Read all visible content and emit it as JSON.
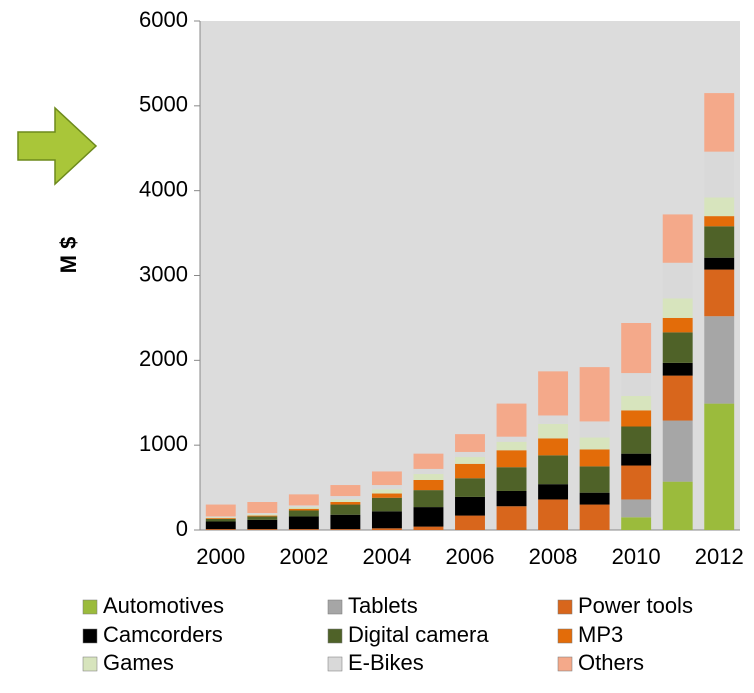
{
  "chart_data": {
    "type": "stacked_bar",
    "y_label": "M $",
    "categories": [
      "2000",
      null,
      "2002",
      null,
      "2004",
      null,
      "2006",
      null,
      "2008",
      null,
      "2010",
      null,
      "2012"
    ],
    "series": [
      {
        "name": "Automotives",
        "color": "#9bbb3c",
        "values": [
          0,
          0,
          0,
          0,
          0,
          0,
          0,
          0,
          0,
          0,
          150,
          570,
          1490
        ]
      },
      {
        "name": "Tablets",
        "color": "#a6a6a6",
        "values": [
          0,
          0,
          0,
          0,
          0,
          0,
          0,
          0,
          0,
          0,
          210,
          720,
          1030
        ]
      },
      {
        "name": "Power tools",
        "color": "#d8661c",
        "values": [
          10,
          10,
          10,
          10,
          20,
          40,
          170,
          280,
          360,
          300,
          400,
          530,
          550
        ]
      },
      {
        "name": "Camcorders",
        "color": "#000000",
        "values": [
          90,
          110,
          150,
          170,
          200,
          230,
          220,
          180,
          180,
          140,
          140,
          150,
          140
        ]
      },
      {
        "name": "Digital camera",
        "color": "#4f6228",
        "values": [
          30,
          40,
          70,
          120,
          160,
          200,
          220,
          280,
          340,
          310,
          320,
          360,
          370
        ]
      },
      {
        "name": "MP3",
        "color": "#e36c09",
        "values": [
          10,
          10,
          20,
          30,
          50,
          120,
          170,
          200,
          200,
          200,
          190,
          170,
          120
        ]
      },
      {
        "name": "Games",
        "color": "#d7e4bd",
        "values": [
          10,
          15,
          20,
          30,
          50,
          70,
          80,
          100,
          170,
          140,
          170,
          230,
          220
        ]
      },
      {
        "name": "E-Bikes",
        "color": "#d9d9d9",
        "values": [
          10,
          15,
          20,
          40,
          50,
          60,
          60,
          60,
          100,
          190,
          270,
          420,
          540
        ]
      },
      {
        "name": "Others",
        "color": "#f4a98a",
        "values": [
          140,
          130,
          130,
          130,
          160,
          180,
          210,
          390,
          520,
          640,
          590,
          570,
          690
        ]
      }
    ],
    "ylim": [
      0,
      6000
    ],
    "yticks": [
      0,
      1000,
      2000,
      3000,
      4000,
      5000,
      6000
    ],
    "grid": false,
    "legend": "bottom"
  }
}
